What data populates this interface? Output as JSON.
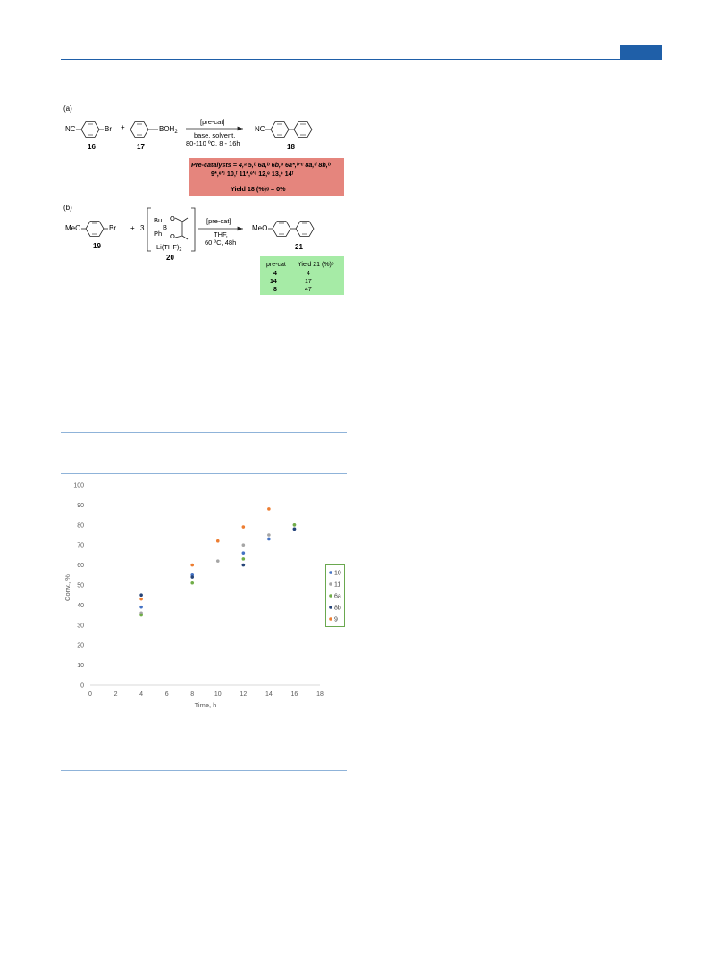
{
  "scheme": {
    "part_a": {
      "label": "(a)",
      "reactant1_group": "NC",
      "reactant1_sub": "Br",
      "plus": "+",
      "reactant2_sub": "BOH",
      "reactant2_sub_subscript": "2",
      "reagent_above": "[pre-cat]",
      "conditions_1": "base, solvent,",
      "conditions_2": "80-110 ºC, 8 - 16h",
      "product_group": "NC",
      "num_reactant1": "16",
      "num_reactant2": "17",
      "num_product": "18",
      "precat_line1": "Pre-catalysts = 4,ᵃ 5,ᵇ 6a,ᵇ 6b,ᵇ 6a*,ᵇ'ᶜ 8a,ᵈ 8b,ᵇ",
      "precat_line2": "9*,ᵉ'ᶜ 10,ᶠ 11*,ᵉ'ᶜ 12,ᵉ 13,ᵉ 14ᶠ",
      "yield_line": "Yield 18 (%)ᵍ = 0%"
    },
    "part_b": {
      "label": "(b)",
      "reactant1_group": "MeO",
      "reactant1_sub": "Br",
      "plus": "+",
      "stoich": "3",
      "boron_bu": "Bu",
      "boron_ph": "Ph",
      "boron_b": "B",
      "boron_o": "O",
      "boron_li": "Li(THF)",
      "boron_li_subscript": "2",
      "reagent_above": "[pre-cat]",
      "conditions_1": "THF,",
      "conditions_2": "60 ºC, 48h",
      "product_group": "MeO",
      "num_reactant1": "19",
      "num_reactant2": "20",
      "num_product": "21",
      "table_headers": [
        "pre-cat",
        "Yield 21 (%)ᵇ"
      ],
      "table_rows": [
        [
          "4",
          "4"
        ],
        [
          "14",
          "17"
        ],
        [
          "8",
          "47"
        ]
      ]
    }
  },
  "chart_data": {
    "type": "scatter",
    "xlabel": "Time, h",
    "ylabel": "Conv., %",
    "xlim": [
      0,
      18
    ],
    "ylim": [
      0,
      100
    ],
    "xticks": [
      0,
      2,
      4,
      6,
      8,
      10,
      12,
      14,
      16,
      18
    ],
    "yticks": [
      0,
      10,
      20,
      30,
      40,
      50,
      60,
      70,
      80,
      90,
      100
    ],
    "grid": false,
    "legend_placement": "right",
    "series": [
      {
        "name": "10",
        "color": "#4472c4",
        "points": [
          [
            4,
            39
          ],
          [
            8,
            55
          ],
          [
            12,
            66
          ],
          [
            14,
            73
          ],
          [
            16,
            78
          ]
        ]
      },
      {
        "name": "11",
        "color": "#a5a5a5",
        "points": [
          [
            4,
            36
          ],
          [
            10,
            62
          ],
          [
            12,
            70
          ],
          [
            14,
            75
          ],
          [
            16,
            80
          ]
        ]
      },
      {
        "name": "6a",
        "color": "#70ad47",
        "points": [
          [
            4,
            35
          ],
          [
            8,
            51
          ],
          [
            12,
            63
          ],
          [
            16,
            80
          ]
        ]
      },
      {
        "name": "8b",
        "color": "#264478",
        "points": [
          [
            4,
            45
          ],
          [
            8,
            54
          ],
          [
            12,
            60
          ],
          [
            16,
            78
          ]
        ]
      },
      {
        "name": "9",
        "color": "#ed7d31",
        "points": [
          [
            4,
            43
          ],
          [
            8,
            60
          ],
          [
            10,
            72
          ],
          [
            12,
            79
          ],
          [
            14,
            88
          ]
        ]
      }
    ]
  }
}
